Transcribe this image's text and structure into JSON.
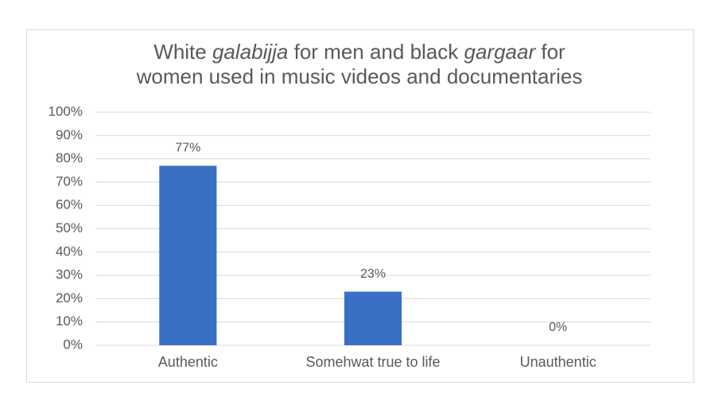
{
  "chart_data": {
    "type": "bar",
    "title": [
      [
        {
          "text": "White "
        },
        {
          "text": "galabijja",
          "italic": true
        },
        {
          "text": " for men and black "
        },
        {
          "text": "gargaar",
          "italic": true
        },
        {
          "text": " for"
        }
      ],
      [
        {
          "text": "women used in music videos and documentaries"
        }
      ]
    ],
    "categories": [
      "Authentic",
      "Somehwat true to life",
      "Unauthentic"
    ],
    "values": [
      77,
      23,
      0
    ],
    "value_labels": [
      "77%",
      "23%",
      "0%"
    ],
    "color": "#3a70c4",
    "ylim": [
      0,
      100
    ],
    "yticks": [
      {
        "value": 0,
        "label": "0%"
      },
      {
        "value": 10,
        "label": "10%"
      },
      {
        "value": 20,
        "label": "20%"
      },
      {
        "value": 30,
        "label": "30%"
      },
      {
        "value": 40,
        "label": "40%"
      },
      {
        "value": 50,
        "label": "50%"
      },
      {
        "value": 60,
        "label": "60%"
      },
      {
        "value": 70,
        "label": "70%"
      },
      {
        "value": 80,
        "label": "80%"
      },
      {
        "value": 90,
        "label": "90%"
      },
      {
        "value": 100,
        "label": "100%"
      }
    ],
    "grid": true
  }
}
